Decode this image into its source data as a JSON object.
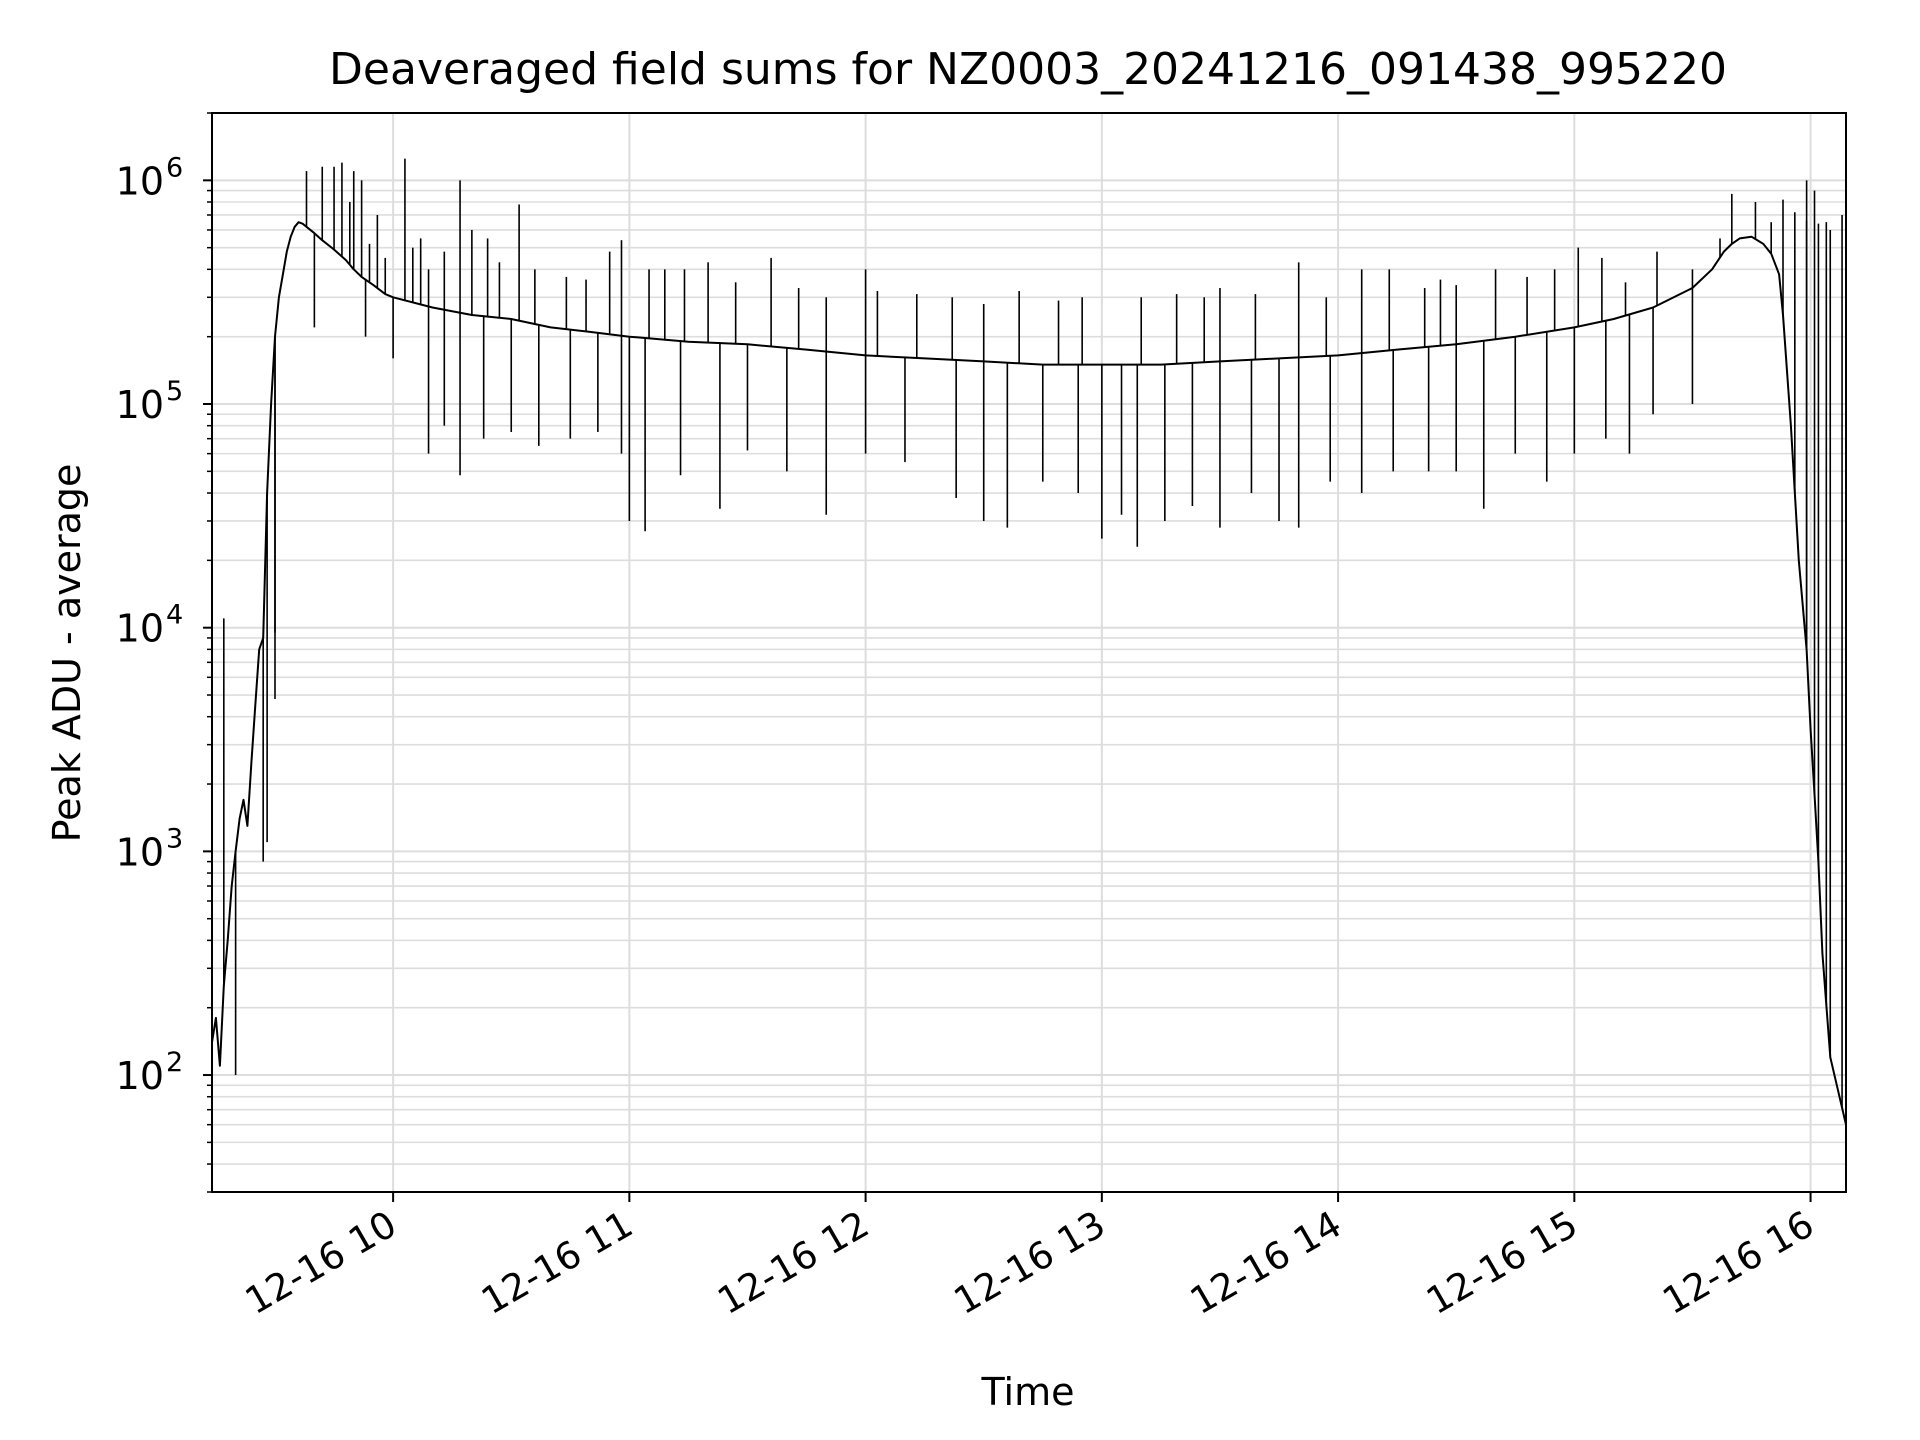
{
  "chart_data": {
    "type": "line",
    "title": "Deaveraged field sums for NZ0003_20241216_091438_995220",
    "xlabel": "Time",
    "ylabel": "Peak ADU - average",
    "yscale": "log",
    "ylim": [
      30,
      2000000
    ],
    "xlim": [
      "12-16 09:14",
      "12-16 16:09"
    ],
    "grid": true,
    "legend": "none",
    "line_color": "#000000",
    "grid_color": "#dddddd",
    "x_ticks": [
      {
        "value": "12-16 10:00",
        "label": "12-16 10"
      },
      {
        "value": "12-16 11:00",
        "label": "12-16 11"
      },
      {
        "value": "12-16 12:00",
        "label": "12-16 12"
      },
      {
        "value": "12-16 13:00",
        "label": "12-16 13"
      },
      {
        "value": "12-16 14:00",
        "label": "12-16 14"
      },
      {
        "value": "12-16 15:00",
        "label": "12-16 15"
      },
      {
        "value": "12-16 16:00",
        "label": "12-16 16"
      }
    ],
    "y_ticks": [
      {
        "value": 100,
        "base": "10",
        "exp": "2"
      },
      {
        "value": 1000,
        "base": "10",
        "exp": "3"
      },
      {
        "value": 10000,
        "base": "10",
        "exp": "4"
      },
      {
        "value": 100000,
        "base": "10",
        "exp": "5"
      },
      {
        "value": 1000000,
        "base": "10",
        "exp": "6"
      }
    ],
    "series": [
      {
        "x": [
          "09:14",
          "09:15",
          "09:16",
          "09:17",
          "09:18",
          "09:19",
          "09:20",
          "09:21",
          "09:22",
          "09:23",
          "09:24",
          "09:25",
          "09:26",
          "09:27",
          "09:28",
          "09:29",
          "09:30",
          "09:31",
          "09:32",
          "09:33",
          "09:34",
          "09:35",
          "09:36",
          "09:37",
          "09:38",
          "09:40",
          "09:42",
          "09:45",
          "09:48",
          "09:50",
          "09:52",
          "09:55",
          "09:58",
          "10:00",
          "10:10",
          "10:20",
          "10:30",
          "10:40",
          "10:50",
          "11:00",
          "11:15",
          "11:30",
          "11:45",
          "12:00",
          "12:15",
          "12:30",
          "12:45",
          "13:00",
          "13:15",
          "13:30",
          "13:45",
          "14:00",
          "14:15",
          "14:30",
          "14:45",
          "15:00",
          "15:10",
          "15:20",
          "15:30",
          "15:35",
          "15:38",
          "15:40",
          "15:42",
          "15:45",
          "15:48",
          "15:50",
          "15:52",
          "15:53",
          "15:55",
          "15:57",
          "15:59",
          "16:00",
          "16:01",
          "16:02",
          "16:03",
          "16:05",
          "16:09"
        ],
        "y": [
          140,
          180,
          110,
          250,
          400,
          700,
          1000,
          1400,
          1700,
          1300,
          2500,
          4500,
          8000,
          9000,
          40000,
          100000,
          200000,
          300000,
          380000,
          480000,
          560000,
          620000,
          650000,
          640000,
          620000,
          580000,
          540000,
          490000,
          440000,
          400000,
          370000,
          340000,
          310000,
          300000,
          270000,
          250000,
          240000,
          220000,
          210000,
          200000,
          190000,
          185000,
          175000,
          165000,
          160000,
          155000,
          150000,
          150000,
          150000,
          155000,
          160000,
          165000,
          175000,
          185000,
          200000,
          220000,
          240000,
          270000,
          330000,
          400000,
          480000,
          520000,
          550000,
          560000,
          520000,
          470000,
          380000,
          250000,
          80000,
          20000,
          8000,
          3500,
          1800,
          900,
          350,
          120,
          60
        ]
      }
    ],
    "spikes": [
      [
        "09:17",
        11000
      ],
      [
        "09:28",
        1100
      ],
      [
        "09:30",
        9500
      ],
      [
        "09:38",
        1100000
      ],
      [
        "09:42",
        1150000
      ],
      [
        "09:45",
        1150000
      ],
      [
        "09:47",
        1200000
      ],
      [
        "09:49",
        800000
      ],
      [
        "09:50",
        1100000
      ],
      [
        "09:52",
        1000000
      ],
      [
        "09:54",
        520000
      ],
      [
        "09:56",
        700000
      ],
      [
        "09:58",
        450000
      ],
      [
        "10:03",
        1250000
      ],
      [
        "10:05",
        500000
      ],
      [
        "10:07",
        550000
      ],
      [
        "10:09",
        400000
      ],
      [
        "10:13",
        480000
      ],
      [
        "10:17",
        1000000
      ],
      [
        "10:20",
        600000
      ],
      [
        "10:24",
        550000
      ],
      [
        "10:27",
        430000
      ],
      [
        "10:32",
        780000
      ],
      [
        "10:36",
        400000
      ],
      [
        "10:44",
        370000
      ],
      [
        "10:49",
        360000
      ],
      [
        "10:55",
        480000
      ],
      [
        "10:58",
        540000
      ],
      [
        "11:05",
        400000
      ],
      [
        "11:09",
        400000
      ],
      [
        "11:14",
        400000
      ],
      [
        "11:20",
        430000
      ],
      [
        "11:27",
        350000
      ],
      [
        "11:36",
        450000
      ],
      [
        "11:43",
        330000
      ],
      [
        "11:50",
        300000
      ],
      [
        "12:00",
        400000
      ],
      [
        "12:03",
        320000
      ],
      [
        "12:13",
        310000
      ],
      [
        "12:22",
        300000
      ],
      [
        "12:30",
        280000
      ],
      [
        "12:39",
        320000
      ],
      [
        "12:49",
        290000
      ],
      [
        "12:55",
        300000
      ],
      [
        "13:10",
        300000
      ],
      [
        "13:19",
        310000
      ],
      [
        "13:26",
        300000
      ],
      [
        "13:30",
        330000
      ],
      [
        "13:39",
        310000
      ],
      [
        "13:50",
        430000
      ],
      [
        "13:57",
        300000
      ],
      [
        "14:06",
        400000
      ],
      [
        "14:13",
        400000
      ],
      [
        "14:22",
        330000
      ],
      [
        "14:26",
        360000
      ],
      [
        "14:30",
        340000
      ],
      [
        "14:40",
        400000
      ],
      [
        "14:48",
        370000
      ],
      [
        "14:55",
        400000
      ],
      [
        "15:01",
        500000
      ],
      [
        "15:07",
        450000
      ],
      [
        "15:13",
        350000
      ],
      [
        "15:21",
        480000
      ],
      [
        "15:30",
        400000
      ],
      [
        "15:37",
        550000
      ],
      [
        "15:40",
        870000
      ],
      [
        "15:46",
        800000
      ],
      [
        "15:50",
        650000
      ],
      [
        "15:53",
        820000
      ],
      [
        "15:56",
        720000
      ],
      [
        "15:59",
        660000
      ],
      [
        "16:02",
        640000
      ],
      [
        "16:05",
        600000
      ],
      [
        "15:59",
        1000000
      ],
      [
        "16:04",
        650000
      ],
      [
        "16:08",
        700000
      ],
      [
        "16:01",
        900000
      ]
    ],
    "dips": [
      [
        "09:20",
        100
      ],
      [
        "09:27",
        900
      ],
      [
        "09:30",
        4800
      ],
      [
        "09:40",
        220000
      ],
      [
        "09:53",
        200000
      ],
      [
        "10:00",
        160000
      ],
      [
        "10:09",
        60000
      ],
      [
        "10:13",
        80000
      ],
      [
        "10:17",
        48000
      ],
      [
        "10:23",
        70000
      ],
      [
        "10:30",
        75000
      ],
      [
        "10:37",
        65000
      ],
      [
        "10:45",
        70000
      ],
      [
        "10:52",
        75000
      ],
      [
        "10:58",
        60000
      ],
      [
        "11:00",
        30000
      ],
      [
        "11:04",
        27000
      ],
      [
        "11:13",
        48000
      ],
      [
        "11:23",
        34000
      ],
      [
        "11:30",
        62000
      ],
      [
        "11:40",
        50000
      ],
      [
        "11:50",
        32000
      ],
      [
        "12:00",
        60000
      ],
      [
        "12:10",
        55000
      ],
      [
        "12:23",
        38000
      ],
      [
        "12:30",
        30000
      ],
      [
        "12:36",
        28000
      ],
      [
        "12:45",
        45000
      ],
      [
        "12:54",
        40000
      ],
      [
        "13:00",
        25000
      ],
      [
        "13:05",
        32000
      ],
      [
        "13:09",
        23000
      ],
      [
        "13:16",
        30000
      ],
      [
        "13:23",
        35000
      ],
      [
        "13:30",
        28000
      ],
      [
        "13:38",
        40000
      ],
      [
        "13:45",
        30000
      ],
      [
        "13:50",
        28000
      ],
      [
        "13:58",
        45000
      ],
      [
        "14:06",
        40000
      ],
      [
        "14:14",
        50000
      ],
      [
        "14:23",
        50000
      ],
      [
        "14:30",
        50000
      ],
      [
        "14:37",
        34000
      ],
      [
        "14:45",
        60000
      ],
      [
        "14:53",
        45000
      ],
      [
        "15:00",
        60000
      ],
      [
        "15:08",
        70000
      ],
      [
        "15:14",
        60000
      ],
      [
        "15:20",
        90000
      ],
      [
        "15:30",
        100000
      ]
    ]
  }
}
